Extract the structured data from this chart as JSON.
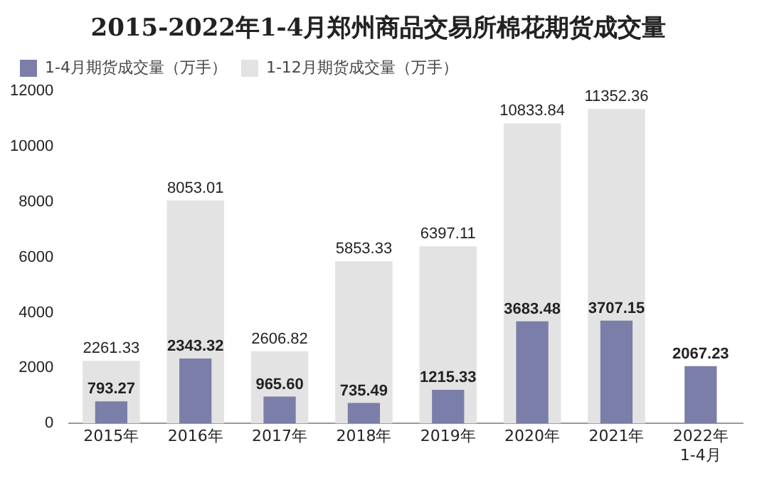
{
  "chart_data": {
    "type": "bar",
    "title": "2015-2022年1-4月郑州商品交易所棉花期货成交量",
    "categories": [
      "2015年",
      "2016年",
      "2017年",
      "2018年",
      "2019年",
      "2020年",
      "2021年",
      "2022年\n1-4月"
    ],
    "series": [
      {
        "name": "1-12月期货成交量（万手）",
        "color": "#e3e3e3",
        "values": [
          2261.33,
          8053.01,
          2606.82,
          5853.33,
          6397.11,
          10833.84,
          11352.36,
          null
        ],
        "value_labels": [
          "2261.33",
          "8053.01",
          "2606.82",
          "5853.33",
          "6397.11",
          "10833.84",
          "11352.36",
          null
        ]
      },
      {
        "name": "1-4月期货成交量（万手）",
        "color": "#7a7ea8",
        "values": [
          793.27,
          2343.32,
          965.6,
          735.49,
          1215.33,
          3683.48,
          3707.15,
          2067.23
        ],
        "value_labels": [
          "793.27",
          "2343.32",
          "965.60",
          "735.49",
          "1215.33",
          "3683.48",
          "3707.15",
          "2067.23"
        ]
      }
    ],
    "ylim": [
      0,
      12000
    ],
    "yticks": [
      0,
      2000,
      4000,
      6000,
      8000,
      10000,
      12000
    ],
    "grid": false,
    "legend": "top left"
  }
}
